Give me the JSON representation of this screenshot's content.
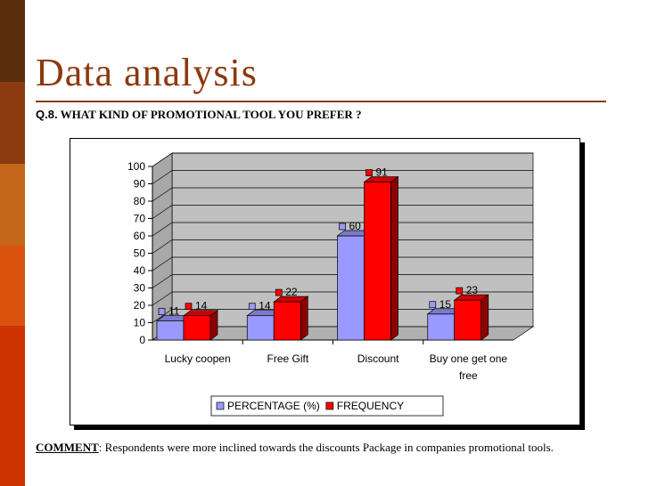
{
  "slide": {
    "title": "Data analysis",
    "question_prefix": "Q.8.",
    "question_text": " WHAT KIND OF PROMOTIONAL TOOL YOU PREFER ?",
    "comment_label": "COMMENT",
    "comment_text": ": Respondents were more inclined towards the discounts Package in companies promotional tools."
  },
  "chart_data": {
    "type": "bar",
    "categories": [
      "Lucky coopen",
      "Free Gift",
      "Discount",
      "Buy one get one free"
    ],
    "series": [
      {
        "name": "PERCENTAGE (%)",
        "values": [
          11,
          14,
          60,
          15
        ],
        "color": "#9999ff",
        "legend_label": "PERCENTAGE (%)"
      },
      {
        "name": "FREQUENCY",
        "values": [
          14,
          22,
          91,
          23
        ],
        "color": "#ff0000",
        "legend_label": "FREQUENCY"
      }
    ],
    "ylim": [
      0,
      100
    ],
    "yticks": [
      0,
      10,
      20,
      30,
      40,
      50,
      60,
      70,
      80,
      90,
      100
    ],
    "grid": true,
    "legend": "bottom",
    "style": "3d-clustered-column"
  }
}
